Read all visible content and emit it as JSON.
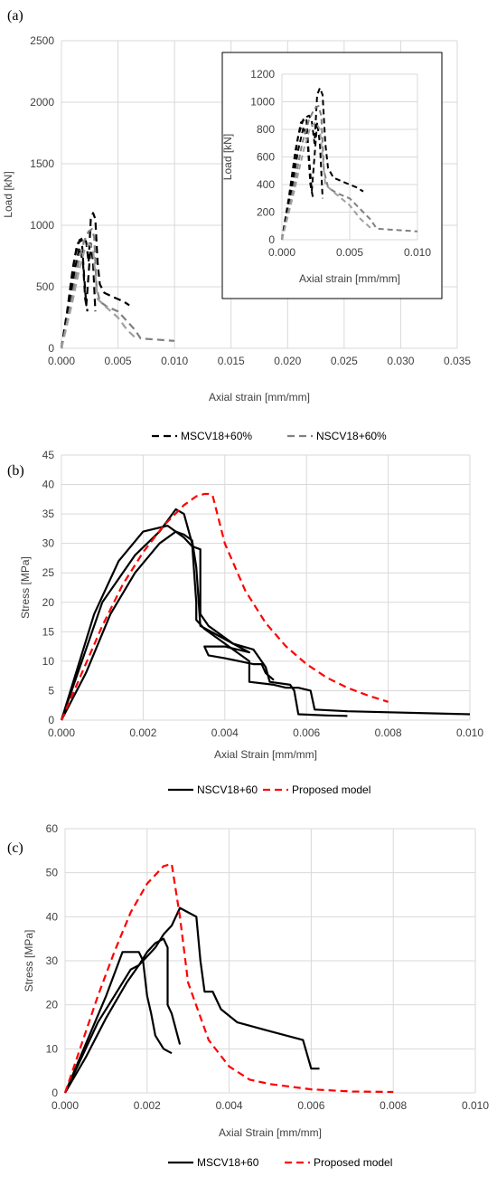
{
  "figure": {
    "panel_labels": [
      "(a)",
      "(b)",
      "(c)"
    ]
  },
  "chart_data": [
    {
      "panel": "(a)",
      "type": "line",
      "xlabel": "Axial strain [mm/mm]",
      "ylabel": "Load [kN]",
      "xlim": [
        0,
        0.035
      ],
      "ylim": [
        0,
        2500
      ],
      "xticks": [
        "0.000",
        "0.005",
        "0.010",
        "0.015",
        "0.020",
        "0.025",
        "0.030",
        "0.035"
      ],
      "xtick_values": [
        0,
        0.005,
        0.01,
        0.015,
        0.02,
        0.025,
        0.03,
        0.035
      ],
      "yticks": [
        "0",
        "500",
        "1000",
        "1500",
        "2000",
        "2500"
      ],
      "ytick_values": [
        0,
        500,
        1000,
        1500,
        2000,
        2500
      ],
      "grid": true,
      "legend": {
        "placement": "bottom",
        "entries": [
          "MSCV18+60%",
          "NSCV18+60%"
        ]
      },
      "series": [
        {
          "name": "MSCV18+60%",
          "color": "#000000",
          "dash": "dash",
          "x": [
            0,
            0.0006,
            0.0012,
            0.0016,
            0.002,
            0.0022,
            0.0024,
            0.0026,
            0.0028,
            0.003,
            0.0032,
            0.0034,
            0.0038,
            0.0045,
            0.0055,
            0.006
          ],
          "y": [
            0,
            350,
            750,
            880,
            900,
            860,
            700,
            1050,
            1100,
            1050,
            700,
            520,
            450,
            420,
            380,
            350
          ]
        },
        {
          "name": "MSCV18+60%",
          "color": "#000000",
          "dash": "dash",
          "x": [
            0,
            0.0005,
            0.001,
            0.0014,
            0.0018,
            0.002,
            0.0022,
            0.0024,
            0.0026,
            0.0028,
            0.003
          ],
          "y": [
            0,
            300,
            650,
            850,
            880,
            600,
            350,
            600,
            850,
            700,
            300
          ]
        },
        {
          "name": "MSCV18+60%",
          "color": "#000000",
          "dash": "dash",
          "x": [
            0,
            0.0006,
            0.0012,
            0.0016,
            0.0019,
            0.0021,
            0.0023
          ],
          "y": [
            0,
            300,
            650,
            820,
            700,
            400,
            300
          ]
        },
        {
          "name": "NSCV18+60%",
          "color": "#808080",
          "dash": "dash",
          "x": [
            0,
            0.0008,
            0.0015,
            0.002,
            0.0024,
            0.0027,
            0.0029,
            0.0031,
            0.0034,
            0.004,
            0.005,
            0.006,
            0.0065,
            0.007,
            0.01
          ],
          "y": [
            0,
            350,
            700,
            870,
            950,
            970,
            900,
            500,
            380,
            340,
            300,
            200,
            150,
            80,
            60
          ]
        },
        {
          "name": "NSCV18+60%",
          "color": "#A0A0A0",
          "dash": "dash",
          "x": [
            0,
            0.0009,
            0.0016,
            0.0021,
            0.0025,
            0.0028,
            0.0032,
            0.004,
            0.005,
            0.0058,
            0.0066
          ],
          "y": [
            0,
            350,
            650,
            820,
            850,
            800,
            400,
            330,
            250,
            150,
            80
          ]
        }
      ],
      "inset": {
        "xlabel": "Axial strain [mm/mm]",
        "ylabel": "Load [kN]",
        "xlim": [
          0,
          0.01
        ],
        "ylim": [
          0,
          1200
        ],
        "xticks": [
          "0.000",
          "0.005",
          "0.010"
        ],
        "xtick_values": [
          0,
          0.005,
          0.01
        ],
        "yticks": [
          "0",
          "200",
          "400",
          "600",
          "800",
          "1000",
          "1200"
        ],
        "ytick_values": [
          0,
          200,
          400,
          600,
          800,
          1000,
          1200
        ]
      }
    },
    {
      "panel": "(b)",
      "type": "line",
      "xlabel": "Axial Strain [mm/mm]",
      "ylabel": "Stress [MPa]",
      "xlim": [
        0,
        0.01
      ],
      "ylim": [
        0,
        45
      ],
      "xticks": [
        "0.000",
        "0.002",
        "0.004",
        "0.006",
        "0.008",
        "0.010"
      ],
      "xtick_values": [
        0,
        0.002,
        0.004,
        0.006,
        0.008,
        0.01
      ],
      "yticks": [
        "0",
        "5",
        "10",
        "15",
        "20",
        "25",
        "30",
        "35",
        "40",
        "45"
      ],
      "ytick_values": [
        0,
        5,
        10,
        15,
        20,
        25,
        30,
        35,
        40,
        45
      ],
      "grid": true,
      "legend": {
        "placement": "bottom",
        "entries": [
          "NSCV18+60",
          "Proposed model"
        ]
      },
      "series": [
        {
          "name": "NSCV18+60",
          "color": "#000000",
          "dash": "solid",
          "x": [
            0,
            0.001,
            0.0018,
            0.0024,
            0.0028,
            0.003,
            0.0032,
            0.0033,
            0.0033,
            0.0035,
            0.004,
            0.0044,
            0.0046,
            0.0046,
            0.0052,
            0.0055,
            0.0058,
            0.0061,
            0.0062,
            0.007,
            0.01
          ],
          "y": [
            0,
            20,
            28,
            32,
            35.8,
            35,
            30,
            20,
            17,
            15.5,
            13,
            11,
            10,
            6.5,
            6,
            5.5,
            5.5,
            5,
            1.8,
            1.5,
            1
          ]
        },
        {
          "name": "NSCV18+60",
          "color": "#000000",
          "dash": "solid",
          "x": [
            0,
            0.0008,
            0.0014,
            0.002,
            0.0026,
            0.003,
            0.0032,
            0.0034,
            0.0034,
            0.0036,
            0.0042,
            0.0047,
            0.005,
            0.0051,
            0.0056,
            0.0057,
            0.0058,
            0.0065,
            0.007
          ],
          "y": [
            0,
            18,
            27,
            32,
            33,
            31,
            29.5,
            29,
            18,
            16,
            13,
            12,
            9,
            6.5,
            6,
            5,
            1,
            0.8,
            0.7
          ]
        },
        {
          "name": "NSCV18+60",
          "color": "#000000",
          "dash": "solid",
          "x": [
            0,
            0.0006,
            0.0012,
            0.0018,
            0.0024,
            0.0028,
            0.003,
            0.0032,
            0.0033,
            0.0034,
            0.0038,
            0.0042,
            0.0046,
            0.004,
            0.0035,
            0.0036,
            0.004,
            0.0047,
            0.0049,
            0.005,
            0.0052
          ],
          "y": [
            0,
            8,
            18,
            25,
            30,
            32,
            31.5,
            30.5,
            26,
            16,
            14.5,
            13,
            11.5,
            12.5,
            12.5,
            11,
            10.5,
            9.5,
            9.5,
            8,
            6.8
          ]
        },
        {
          "name": "Proposed model",
          "color": "#FF0000",
          "dash": "dash",
          "x": [
            0,
            0.0005,
            0.001,
            0.0015,
            0.002,
            0.0025,
            0.003,
            0.0033,
            0.0035,
            0.0036,
            0.0037,
            0.004,
            0.0045,
            0.005,
            0.0055,
            0.006,
            0.0065,
            0.007,
            0.0075,
            0.008
          ],
          "y": [
            0,
            8,
            16,
            23,
            28.5,
            33,
            36.5,
            38,
            38.4,
            38.4,
            38.2,
            30,
            22,
            16.5,
            12.5,
            9.5,
            7.2,
            5.5,
            4.2,
            3.1
          ]
        }
      ]
    },
    {
      "panel": "(c)",
      "type": "line",
      "xlabel": "Axial Strain [mm/mm]",
      "ylabel": "Stress [MPa]",
      "xlim": [
        0,
        0.01
      ],
      "ylim": [
        0,
        60
      ],
      "xticks": [
        "0.000",
        "0.002",
        "0.004",
        "0.006",
        "0.008",
        "0.010"
      ],
      "xtick_values": [
        0,
        0.002,
        0.004,
        0.006,
        0.008,
        0.01
      ],
      "yticks": [
        "0",
        "10",
        "20",
        "30",
        "40",
        "50",
        "60"
      ],
      "ytick_values": [
        0,
        10,
        20,
        30,
        40,
        50,
        60
      ],
      "grid": true,
      "legend": {
        "placement": "bottom",
        "entries": [
          "MSCV18+60",
          "Proposed model"
        ]
      },
      "series": [
        {
          "name": "MSCV18+60",
          "color": "#000000",
          "dash": "solid",
          "x": [
            0,
            0.0005,
            0.001,
            0.0015,
            0.0018,
            0.002,
            0.0022,
            0.0024,
            0.0026,
            0.0028,
            0.003,
            0.0032,
            0.0033,
            0.0034,
            0.0036,
            0.0038,
            0.0042,
            0.005,
            0.0058,
            0.006,
            0.0062
          ],
          "y": [
            0,
            8,
            17,
            25,
            29,
            31,
            33,
            36,
            38,
            42,
            41,
            40,
            30,
            23,
            23,
            19,
            16,
            14,
            12,
            5.5,
            5.5
          ]
        },
        {
          "name": "MSCV18+60",
          "color": "#000000",
          "dash": "solid",
          "x": [
            0,
            0.0005,
            0.001,
            0.0014,
            0.0016,
            0.0018,
            0.0019,
            0.002,
            0.0021,
            0.0022,
            0.0024,
            0.0026
          ],
          "y": [
            0,
            11,
            22,
            32,
            32,
            32,
            30,
            22,
            18,
            13,
            10,
            9
          ]
        },
        {
          "name": "MSCV18+60",
          "color": "#000000",
          "dash": "solid",
          "x": [
            0,
            0.0004,
            0.0008,
            0.0012,
            0.0016,
            0.0018,
            0.002,
            0.0022,
            0.0024,
            0.0025,
            0.0025,
            0.0026,
            0.0028
          ],
          "y": [
            0,
            8,
            16,
            22,
            28,
            29,
            32,
            34,
            35,
            33,
            20,
            18,
            11
          ]
        },
        {
          "name": "Proposed model",
          "color": "#FF0000",
          "dash": "dash",
          "x": [
            0,
            0.0004,
            0.0008,
            0.0012,
            0.0016,
            0.002,
            0.0024,
            0.0026,
            0.0028,
            0.003,
            0.0035,
            0.004,
            0.0045,
            0.005,
            0.006,
            0.007,
            0.008
          ],
          "y": [
            0,
            11,
            22,
            32,
            41,
            47.5,
            51.5,
            52,
            40,
            25,
            12,
            6,
            3,
            2,
            0.8,
            0.3,
            0.2
          ]
        }
      ]
    }
  ]
}
